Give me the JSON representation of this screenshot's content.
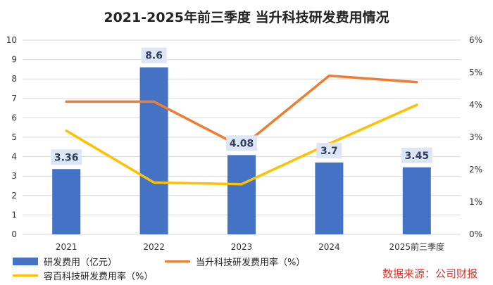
{
  "title": "2021-2025年前三季度 当升科技研发费用情况",
  "source": "数据来源：公司财报",
  "colors": {
    "bar": "#4472C4",
    "line1": "#ED7D31",
    "line2": "#FFC000",
    "grid": "#d9d9d9",
    "label_bg": "#dde6f4"
  },
  "chart_data": {
    "type": "bar",
    "categories": [
      "2021",
      "2022",
      "2023",
      "2024",
      "2025前三季度"
    ],
    "series": [
      {
        "name": "研发费用（亿元）",
        "type": "bar",
        "axis": "left",
        "values": [
          3.36,
          8.6,
          4.08,
          3.7,
          3.45
        ],
        "labels": [
          "3.36",
          "8.6",
          "4.08",
          "3.7",
          "3.45"
        ]
      },
      {
        "name": "当升科技研发费用率（%）",
        "type": "line",
        "axis": "right",
        "values": [
          4.1,
          4.1,
          2.7,
          4.9,
          4.7
        ]
      },
      {
        "name": "容百科技研发费用率（%）",
        "type": "line",
        "axis": "right",
        "values": [
          3.2,
          1.6,
          1.55,
          2.8,
          4.0
        ]
      }
    ],
    "y_left": {
      "min": 0,
      "max": 10,
      "ticks": [
        "0",
        "1",
        "2",
        "3",
        "4",
        "5",
        "6",
        "7",
        "8",
        "9",
        "10"
      ]
    },
    "y_right": {
      "min": 0,
      "max": 6,
      "ticks": [
        "0%",
        "1%",
        "2%",
        "3%",
        "4%",
        "5%",
        "6%"
      ]
    },
    "grid": true,
    "legend": "bottom"
  }
}
